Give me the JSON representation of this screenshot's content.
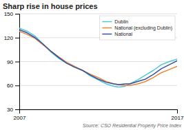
{
  "chart_data": {
    "type": "line",
    "title": "Sharp rise in house prices",
    "annotations": [
      "Source: CSO Residential Property Price Index"
    ],
    "x": [
      2007,
      2007.5,
      2008,
      2008.5,
      2009,
      2009.5,
      2010,
      2010.5,
      2011,
      2011.5,
      2012,
      2012.5,
      2013,
      2013.3,
      2013.7,
      2014,
      2014.5,
      2015,
      2015.5,
      2016,
      2016.5,
      2017
    ],
    "series": [
      {
        "name": "Dublin",
        "color": "#4ec8d2",
        "values": [
          132,
          128,
          122,
          112,
          102,
          94,
          88,
          83,
          79,
          72,
          67,
          62,
          59,
          58,
          59,
          62,
          67,
          73,
          79,
          86,
          90,
          93
        ]
      },
      {
        "name": "National (excluding Dublin)",
        "color": "#e8873a",
        "values": [
          128,
          124,
          119,
          111,
          103,
          96,
          89,
          84,
          79,
          74,
          70,
          65,
          62,
          61,
          60,
          60,
          62,
          65,
          70,
          76,
          80,
          84
        ]
      },
      {
        "name": "National",
        "color": "#3a4fa0",
        "values": [
          130,
          126,
          120,
          112,
          103,
          95,
          88,
          83,
          79,
          73,
          68,
          64,
          62,
          61,
          62,
          62,
          65,
          68,
          74,
          81,
          86,
          91
        ]
      }
    ],
    "xlim": [
      2007,
      2017
    ],
    "xticks": [
      2007,
      2017
    ],
    "ylim": [
      30,
      150
    ],
    "yticks": [
      30,
      60,
      90,
      120,
      150
    ],
    "grid": true,
    "legend": "upper right"
  }
}
